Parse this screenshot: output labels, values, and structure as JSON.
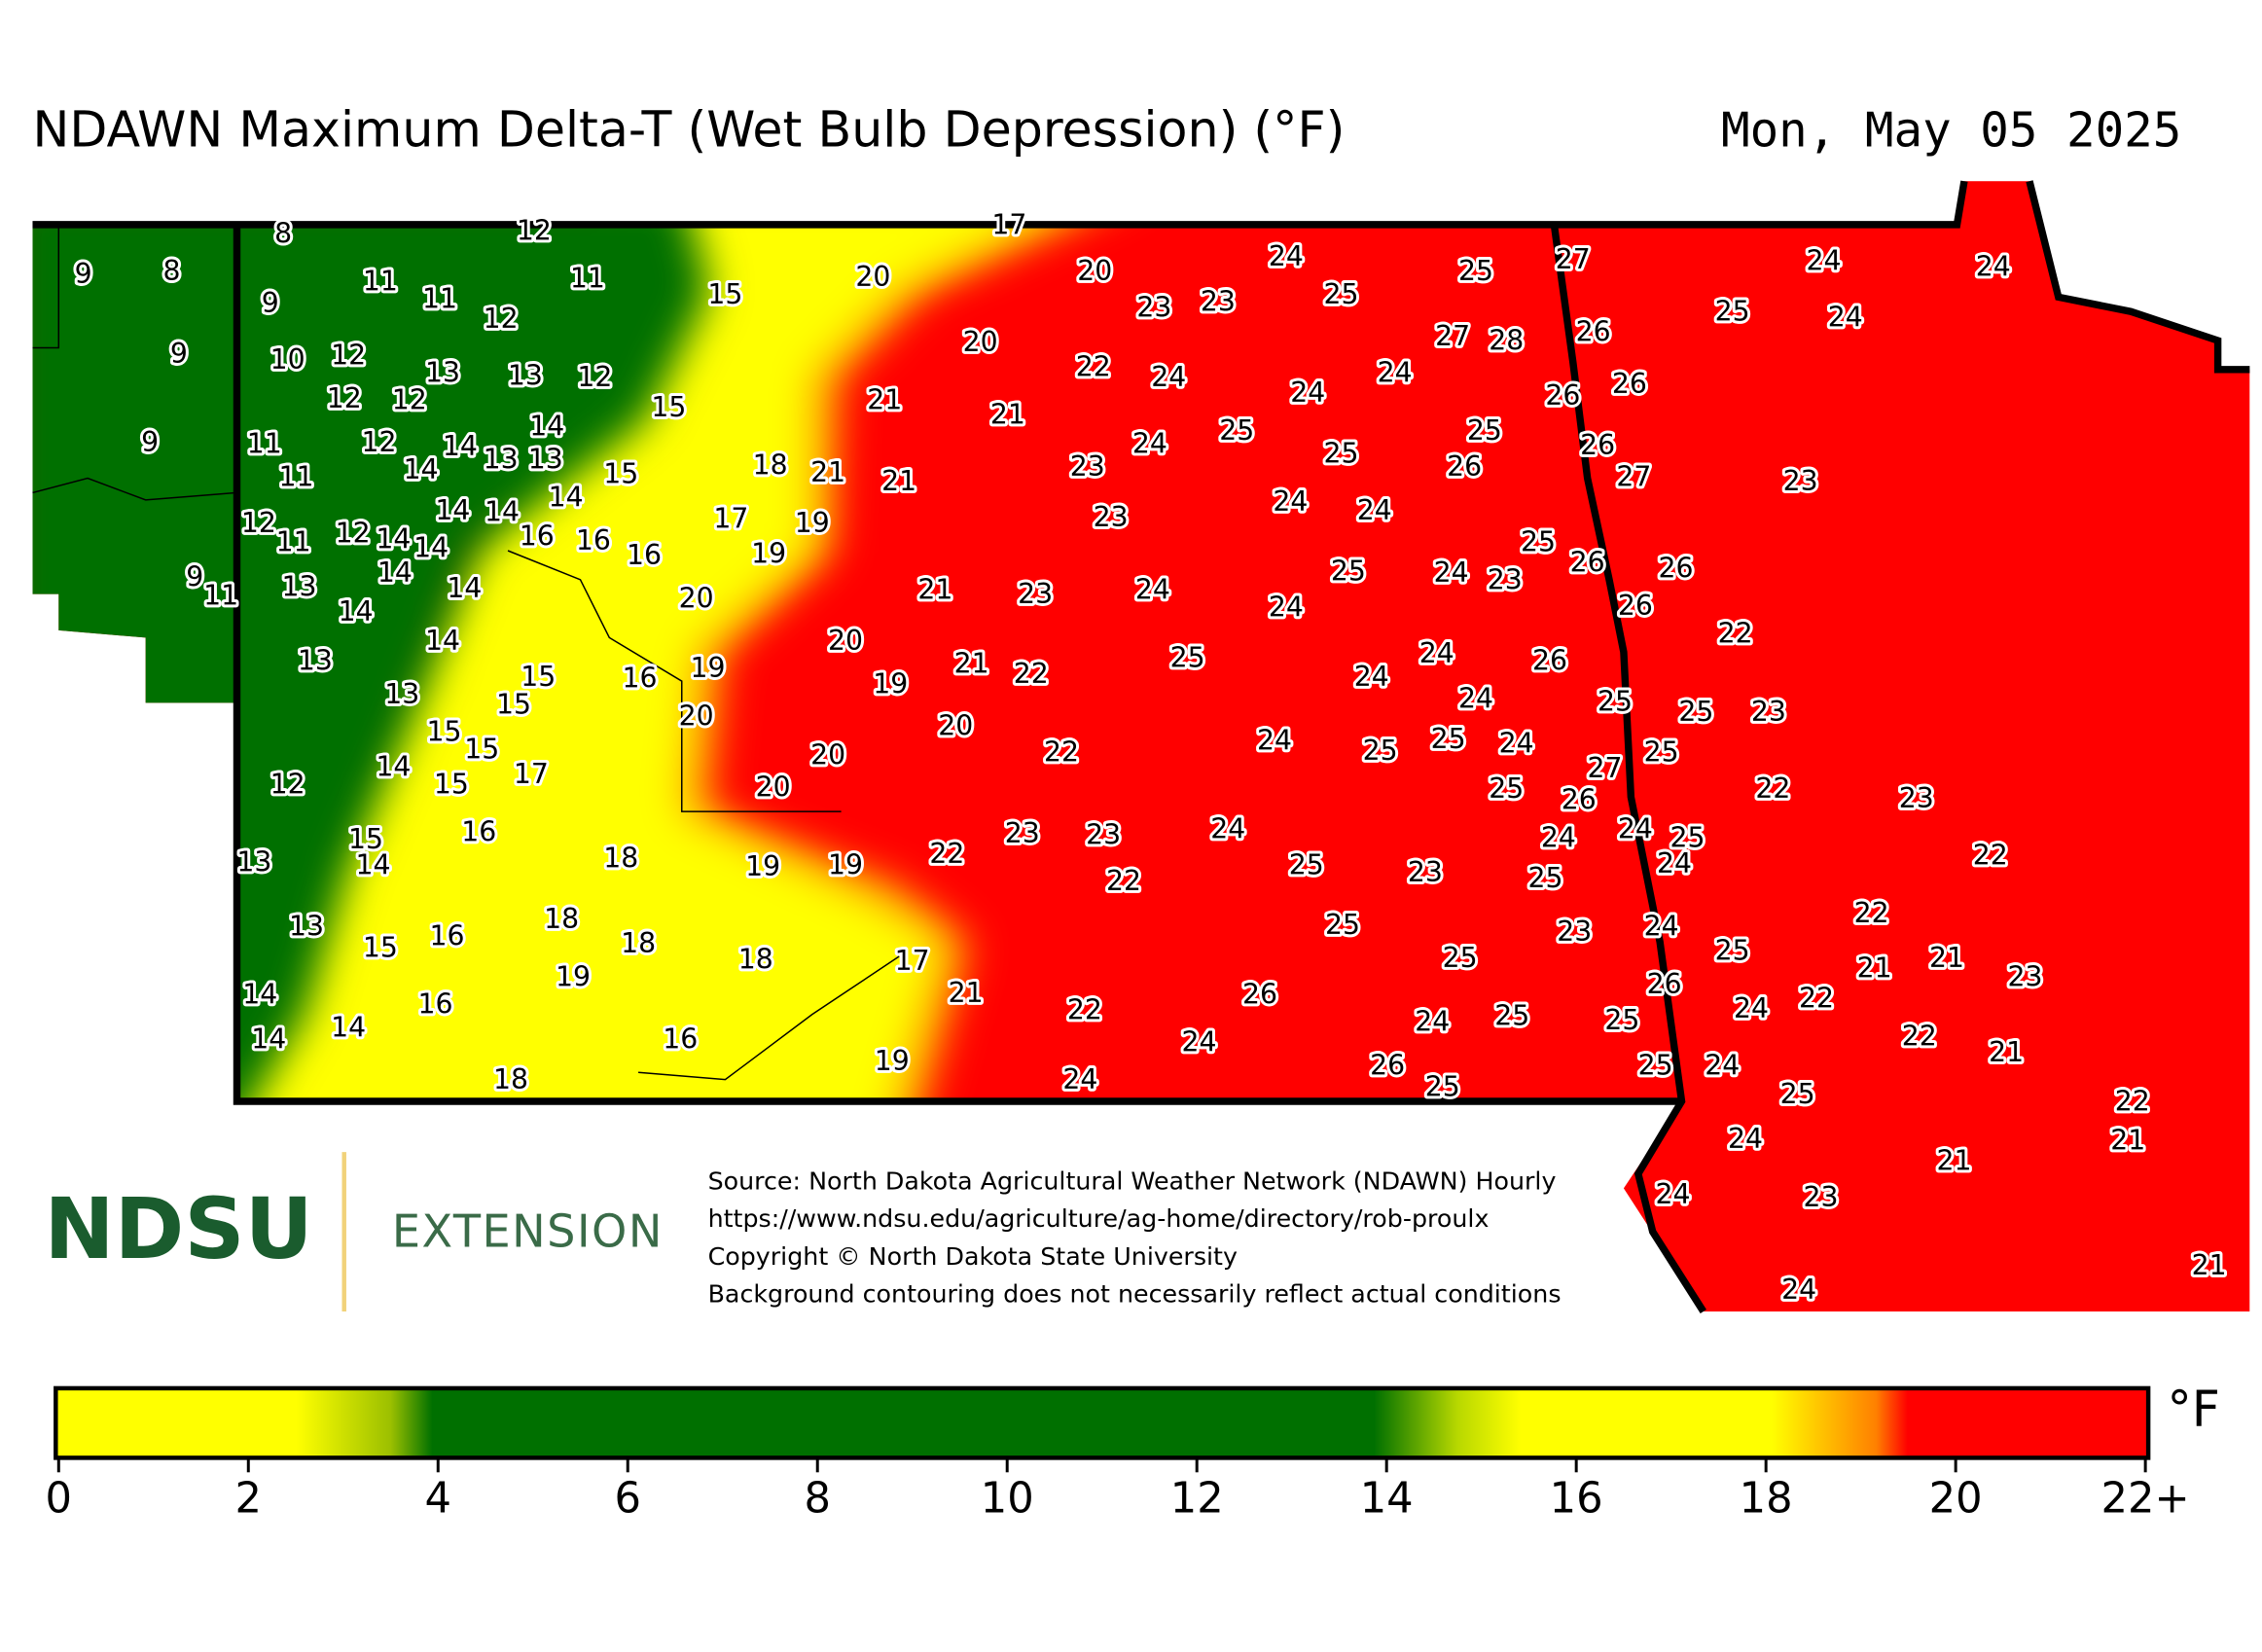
{
  "title": "NDAWN Maximum Delta-T (Wet Bulb Depression) (°F)",
  "date": "Mon, May 05 2025",
  "stations": [
    9,
    8,
    8,
    12,
    17,
    9,
    11,
    11,
    12,
    11,
    15,
    20,
    20,
    24,
    25,
    27,
    24,
    24,
    9,
    10,
    12,
    13,
    13,
    12,
    20,
    23,
    23,
    25,
    27,
    28,
    26,
    25,
    24,
    12,
    12,
    15,
    22,
    24,
    24,
    26,
    26,
    21,
    21,
    24,
    9,
    11,
    12,
    14,
    14,
    13,
    13,
    14,
    11,
    15,
    18,
    21,
    21,
    23,
    24,
    25,
    25,
    25,
    26,
    26,
    27,
    23,
    12,
    11,
    12,
    14,
    14,
    14,
    14,
    14,
    16,
    16,
    16,
    17,
    19,
    19,
    23,
    24,
    24,
    9,
    11,
    13,
    14,
    14,
    14,
    20,
    21,
    23,
    24,
    24,
    25,
    24,
    23,
    25,
    26,
    26,
    26,
    22,
    13,
    14,
    15,
    16,
    19,
    20,
    19,
    21,
    22,
    25,
    24,
    24,
    26,
    13,
    15,
    15,
    15,
    20,
    20,
    24,
    24,
    25,
    25,
    23,
    12,
    14,
    15,
    17,
    20,
    22,
    25,
    25,
    24,
    27,
    25,
    22,
    23,
    20,
    16,
    25,
    26,
    24,
    24,
    25,
    24,
    23,
    23,
    24,
    13,
    15,
    14,
    18,
    19,
    19,
    22,
    22,
    25,
    23,
    25,
    22,
    13,
    15,
    16,
    18,
    18,
    18,
    19,
    17,
    25,
    25,
    23,
    24,
    25,
    22,
    21,
    21,
    23,
    14,
    16,
    21,
    22,
    26,
    26,
    24,
    22,
    25,
    24,
    25,
    14,
    14,
    16,
    24,
    22,
    21,
    19,
    26,
    25,
    24,
    18,
    24,
    25,
    25,
    22,
    24,
    21,
    21,
    24,
    23,
    21,
    24
  ],
  "logo": {
    "name": "NDSU",
    "unit": "EXTENSION"
  },
  "source": [
    "Source: North Dakota Agricultural Weather Network (NDAWN) Hourly",
    "https://www.ndsu.edu/agriculture/ag-home/directory/rob-proulx",
    "Copyright © North Dakota State University",
    "Background contouring does not necessarily reflect actual conditions"
  ],
  "colorbar": {
    "ticks": [
      0,
      2,
      4,
      6,
      8,
      10,
      12,
      14,
      16,
      18,
      20,
      {
        "value": 22,
        "label": "22+"
      }
    ],
    "range": [
      0,
      22
    ],
    "unit": "°F"
  }
}
